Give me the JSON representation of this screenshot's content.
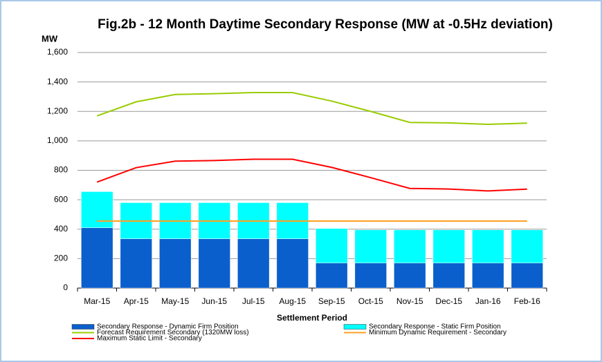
{
  "chart_data": {
    "type": "bar",
    "stacked": true,
    "title": "Fig.2b - 12 Month Daytime Secondary Response (MW at -0.5Hz deviation)",
    "y_label": "MW",
    "x_label": "Settlement Period",
    "categories": [
      "Mar-15",
      "Apr-15",
      "May-15",
      "Jun-15",
      "Jul-15",
      "Aug-15",
      "Sep-15",
      "Oct-15",
      "Nov-15",
      "Dec-15",
      "Jan-16",
      "Feb-16"
    ],
    "series": [
      {
        "name": "Secondary Response - Dynamic Firm Position",
        "type": "bar",
        "color": "#0a5fcc",
        "values": [
          410,
          335,
          335,
          335,
          335,
          335,
          170,
          170,
          170,
          170,
          170,
          170
        ]
      },
      {
        "name": "Secondary Response - Static Firm Position",
        "type": "bar",
        "color": "#00ffff",
        "values": [
          245,
          245,
          245,
          245,
          245,
          245,
          235,
          225,
          225,
          225,
          225,
          225
        ]
      },
      {
        "name": "Forecast Requirement Secondary (1320MW loss)",
        "type": "line",
        "color": "#99cc00",
        "values": [
          1170,
          1265,
          1315,
          1320,
          1328,
          1328,
          1270,
          1200,
          1125,
          1122,
          1112,
          1120
        ]
      },
      {
        "name": "Minimum Dynamic Requirement - Secondary",
        "type": "line",
        "color": "#ffa020",
        "values": [
          455,
          455,
          455,
          455,
          455,
          455,
          455,
          455,
          455,
          455,
          455,
          455
        ]
      },
      {
        "name": "Maximum Static Limit - Secondary",
        "type": "line",
        "color": "#ff0000",
        "values": [
          720,
          818,
          862,
          866,
          875,
          875,
          820,
          750,
          677,
          673,
          660,
          672
        ]
      }
    ],
    "ylim": [
      0,
      1600
    ],
    "yticks": [
      0,
      200,
      400,
      600,
      800,
      {
        "value": 1000,
        "label": "1,000"
      },
      {
        "value": 1200,
        "label": "1,200"
      },
      {
        "value": 1400,
        "label": "1,400"
      },
      {
        "value": 1600,
        "label": "1,600"
      }
    ],
    "grid": true
  }
}
